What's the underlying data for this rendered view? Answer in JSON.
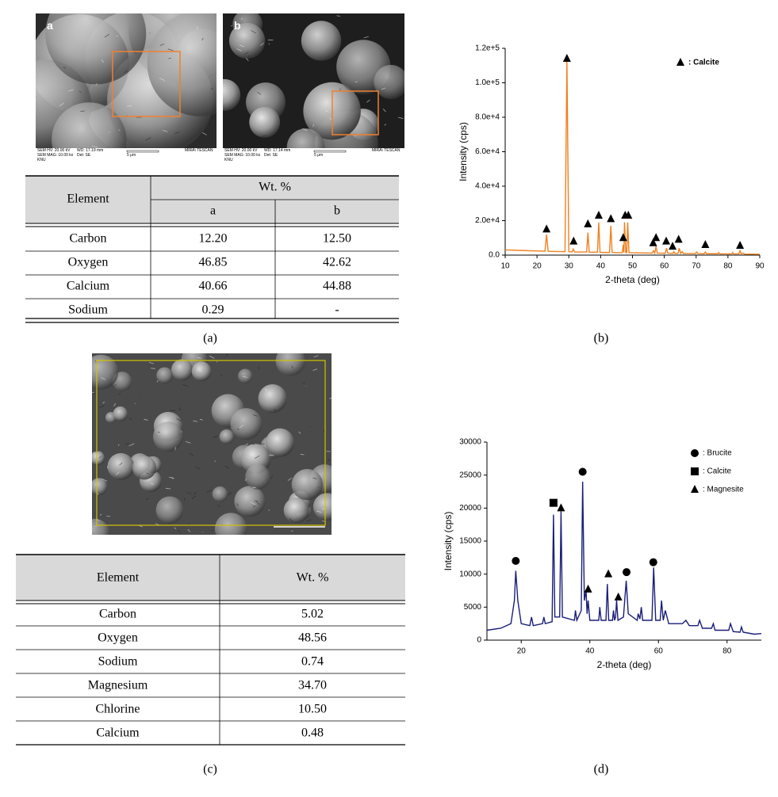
{
  "figure": {
    "panel_a": {
      "images": [
        {
          "label": "a",
          "footer": [
            "SEM HV: 20.00 kV",
            "WD: 17.19 mm",
            "MIRA\\ TESCAN",
            "SEM MAG: 10.00 kx",
            "Det: SE",
            "5 μm",
            "KNU"
          ]
        },
        {
          "label": "b",
          "footer": [
            "SEM HV: 20.00 kV",
            "WD: 17.14 mm",
            "MIRA\\ TESCAN",
            "SEM MAG: 10.00 kx",
            "Det: SE",
            "5 μm",
            "KNU"
          ]
        }
      ],
      "table": {
        "header": [
          "Element",
          "Wt. %"
        ],
        "subheader": [
          "a",
          "b"
        ],
        "rows": [
          [
            "Carbon",
            "12.20",
            "12.50"
          ],
          [
            "Oxygen",
            "46.85",
            "42.62"
          ],
          [
            "Calcium",
            "40.66",
            "44.88"
          ],
          [
            "Sodium",
            "0.29",
            "-"
          ]
        ]
      },
      "caption": "(a)"
    },
    "panel_c": {
      "table": {
        "header": [
          "Element",
          "Wt. %"
        ],
        "rows": [
          [
            "Carbon",
            "5.02"
          ],
          [
            "Oxygen",
            "48.56"
          ],
          [
            "Sodium",
            "0.74"
          ],
          [
            "Magnesium",
            "34.70"
          ],
          [
            "Chlorine",
            "10.50"
          ],
          [
            "Calcium",
            "0.48"
          ]
        ]
      },
      "caption": "(c)"
    }
  },
  "chart_data": [
    {
      "type": "line",
      "caption": "(b)",
      "xlabel": "2-theta (deg)",
      "ylabel": "Intensity (cps)",
      "legend": "upper right",
      "xlim": [
        10,
        90
      ],
      "xticks": [
        10,
        20,
        30,
        40,
        50,
        60,
        70,
        80,
        90
      ],
      "ylim": [
        0,
        120000
      ],
      "yticks": [
        {
          "value": 0,
          "label": "0.0"
        },
        {
          "value": 20000,
          "label": "2.0e+4"
        },
        {
          "value": 40000,
          "label": "4.0e+4"
        },
        {
          "value": 60000,
          "label": "6.0e+4"
        },
        {
          "value": 80000,
          "label": "8.0e+4"
        },
        {
          "value": 100000,
          "label": "1.0e+5"
        },
        {
          "value": 120000,
          "label": "1.2e+5"
        }
      ],
      "x": [
        10,
        15,
        20,
        22.5,
        23,
        23.5,
        28.8,
        29.4,
        30,
        31,
        31.4,
        31.8,
        35.6,
        36,
        36.4,
        39,
        39.4,
        39.8,
        42.8,
        43.2,
        43.6,
        46.8,
        47.1,
        47.3,
        47.5,
        47.9,
        48.2,
        48.5,
        48.9,
        56.2,
        56.6,
        57,
        57.4,
        57.8,
        60.3,
        60.7,
        61.1,
        62.7,
        63,
        63.3,
        64.3,
        64.7,
        65.1,
        65.6,
        66,
        69.8,
        70.2,
        70.6,
        72.5,
        72.9,
        73.3,
        76.8,
        77.1,
        77.4,
        81.2,
        81.5,
        81.8,
        83.4,
        83.8,
        84.2,
        84.8,
        85.2,
        90
      ],
      "series": [
        {
          "color": "#f0801e",
          "values": [
            3000,
            2700,
            2400,
            2300,
            12000,
            2200,
            2000,
            113000,
            2000,
            1900,
            3500,
            1800,
            1800,
            13000,
            1700,
            1700,
            19000,
            1600,
            1500,
            17000,
            1500,
            1400,
            6000,
            1500,
            19000,
            1500,
            1500,
            19000,
            1400,
            1200,
            2500,
            1200,
            5000,
            1200,
            1100,
            4000,
            1100,
            1000,
            2000,
            1000,
            1000,
            4000,
            1000,
            2000,
            900,
            900,
            1800,
            900,
            800,
            1800,
            800,
            800,
            1500,
            700,
            700,
            1500,
            700,
            700,
            2500,
            700,
            1200,
            600,
            500
          ]
        }
      ],
      "markers": [
        {
          "name": ": Calcite",
          "shape": "triangle",
          "color": "#000000",
          "x": [
            23,
            29.4,
            31.5,
            36,
            39.4,
            43.2,
            47.1,
            47.7,
            48.7,
            56.5,
            57.4,
            60.6,
            62.6,
            64.5,
            72.9,
            83.8
          ],
          "y": [
            15000,
            114000,
            8000,
            18000,
            23000,
            21000,
            10000,
            23000,
            23000,
            7000,
            10000,
            8000,
            5000,
            9000,
            6000,
            5500
          ]
        }
      ]
    },
    {
      "type": "line",
      "caption": "(d)",
      "xlabel": "2-theta (deg)",
      "ylabel": "Intensity (cps)",
      "legend": "upper right",
      "xlim": [
        10,
        90
      ],
      "xticks": [
        20,
        40,
        60,
        80
      ],
      "ylim": [
        0,
        30000
      ],
      "yticks": [
        0,
        5000,
        10000,
        15000,
        20000,
        25000,
        30000
      ],
      "x": [
        10,
        14,
        17,
        18,
        18.4,
        19,
        20,
        22.5,
        23,
        23.5,
        26.2,
        26.6,
        27,
        29,
        29.4,
        29.8,
        31.2,
        31.6,
        32,
        35.5,
        35.8,
        36.2,
        37.5,
        37.9,
        38.4,
        38.9,
        39.2,
        39.5,
        40,
        42.6,
        42.9,
        43.3,
        44.7,
        45.1,
        45.5,
        46.6,
        46.9,
        47.2,
        47.5,
        47.8,
        48.2,
        49.8,
        50.6,
        51.2,
        53.8,
        54.1,
        54.6,
        55,
        55.4,
        58.1,
        58.6,
        59.2,
        60.5,
        60.9,
        61.4,
        62,
        63,
        65,
        67,
        68,
        69,
        71.5,
        72,
        72.8,
        75.5,
        76,
        76.5,
        80.5,
        81,
        81.8,
        83.8,
        84.2,
        84.7,
        88,
        90
      ],
      "series": [
        {
          "color": "#1a1f78",
          "values": [
            1500,
            1800,
            2500,
            6000,
            10500,
            6000,
            2500,
            2200,
            3500,
            2200,
            2500,
            3500,
            2500,
            2800,
            19000,
            3500,
            3500,
            19500,
            3500,
            3000,
            4500,
            3000,
            4500,
            24000,
            6000,
            7500,
            4000,
            6000,
            3000,
            3000,
            5000,
            3000,
            3000,
            8500,
            3000,
            3000,
            4500,
            3000,
            3500,
            6000,
            3000,
            3500,
            9000,
            4000,
            3000,
            4000,
            3200,
            5000,
            3000,
            3000,
            11000,
            3000,
            3000,
            6000,
            3000,
            4500,
            2500,
            2500,
            2500,
            3000,
            2200,
            2200,
            3000,
            1800,
            1800,
            2500,
            1500,
            1500,
            2500,
            1300,
            1200,
            2000,
            1200,
            900,
            1000
          ]
        }
      ],
      "markers": [
        {
          "name": ": Brucite",
          "shape": "circle",
          "color": "#000000",
          "x": [
            18.4,
            37.9,
            50.7,
            58.5
          ],
          "y": [
            12000,
            25500,
            10300,
            11800
          ]
        },
        {
          "name": ": Calcite",
          "shape": "square",
          "color": "#000000",
          "x": [
            29.4
          ],
          "y": [
            20800
          ]
        },
        {
          "name": ": Magnesite",
          "shape": "triangle",
          "color": "#000000",
          "x": [
            31.6,
            39.5,
            45.4,
            48.3
          ],
          "y": [
            20000,
            7700,
            10000,
            6500
          ]
        }
      ]
    }
  ]
}
